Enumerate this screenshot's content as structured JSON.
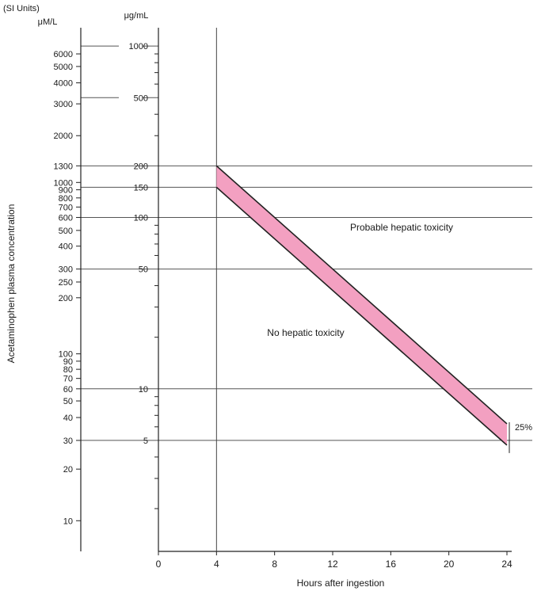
{
  "chart_data": {
    "type": "line",
    "title": "",
    "xlabel": "Hours after ingestion",
    "ylabel": "Acetaminophen plasma concentration",
    "si_units_header": "(SI Units)",
    "si_axis_label": "μM/L",
    "mass_axis_label": "μg/mL",
    "x_ticks": [
      0,
      4,
      8,
      12,
      16,
      20,
      24
    ],
    "x_tick_labels": [
      "0",
      "4",
      "8",
      "12",
      "16",
      "20",
      "24"
    ],
    "xlim": [
      0,
      24
    ],
    "y_scale": "log",
    "ylim_ug_ml": [
      1.2,
      1150
    ],
    "mass_ticks": [
      1000,
      500,
      200,
      150,
      100,
      50,
      10,
      5
    ],
    "mass_tick_labels": [
      "1000",
      "500",
      "200",
      "150",
      "100",
      "50",
      "10",
      "5"
    ],
    "si_ticks": [
      {
        "label": "6000",
        "ug_ml": 900
      },
      {
        "label": "5000",
        "ug_ml": 760
      },
      {
        "label": "4000",
        "ug_ml": 610
      },
      {
        "label": "3000",
        "ug_ml": 460
      },
      {
        "label": "2000",
        "ug_ml": 300
      },
      {
        "label": "1300",
        "ug_ml": 200
      },
      {
        "label": "1000",
        "ug_ml": 160
      },
      {
        "label": "900",
        "ug_ml": 145
      },
      {
        "label": "800",
        "ug_ml": 130
      },
      {
        "label": "700",
        "ug_ml": 115
      },
      {
        "label": "600",
        "ug_ml": 100
      },
      {
        "label": "500",
        "ug_ml": 84
      },
      {
        "label": "400",
        "ug_ml": 68
      },
      {
        "label": "300",
        "ug_ml": 50
      },
      {
        "label": "250",
        "ug_ml": 42
      },
      {
        "label": "200",
        "ug_ml": 34
      },
      {
        "label": "100",
        "ug_ml": 16
      },
      {
        "label": "90",
        "ug_ml": 14.5
      },
      {
        "label": "80",
        "ug_ml": 13
      },
      {
        "label": "70",
        "ug_ml": 11.5
      },
      {
        "label": "60",
        "ug_ml": 10
      },
      {
        "label": "50",
        "ug_ml": 8.5
      },
      {
        "label": "40",
        "ug_ml": 6.8
      },
      {
        "label": "30",
        "ug_ml": 5
      },
      {
        "label": "20",
        "ug_ml": 3.4
      },
      {
        "label": "10",
        "ug_ml": 1.7
      }
    ],
    "si_gridline_labels": [
      "6000",
      "3000",
      "1300",
      "1000",
      "600",
      "300",
      "60",
      "30"
    ],
    "series": [
      {
        "x": [
          4,
          24
        ],
        "values": [
          200,
          6.25
        ]
      },
      {
        "x": [
          4,
          24
        ],
        "values": [
          150,
          4.69
        ]
      }
    ],
    "vertical_line_x": 4,
    "annotations": {
      "upper_region": "Probable hepatic toxicity",
      "lower_region": "No hepatic toxicity",
      "band_width": "25%"
    },
    "band_color": "#f3a0c1",
    "line_color": "#222222",
    "grid": true
  }
}
